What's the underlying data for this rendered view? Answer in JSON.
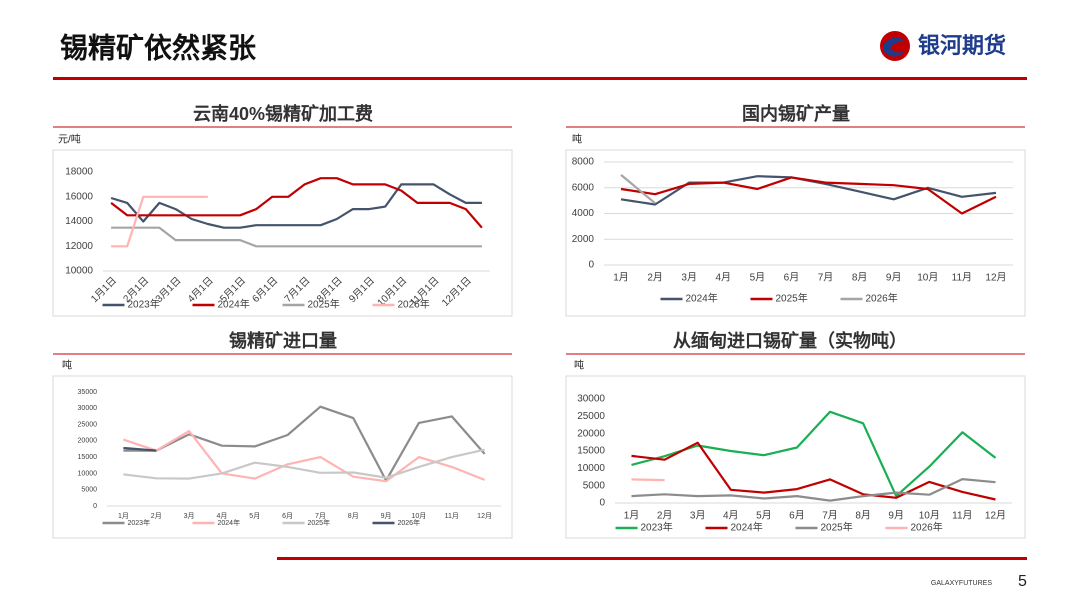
{
  "header": {
    "title": "锡精矿依然紧张",
    "logo": "银河期货"
  },
  "footer": {
    "brand": "GALAXYFUTURES",
    "page": "5"
  },
  "chart_data": [
    {
      "type": "line",
      "title": "云南40%锡精矿加工费",
      "y_label": "元/吨",
      "categories": [
        "1月1日",
        null,
        "2月1日",
        null,
        "3月1日",
        null,
        "4月1日",
        null,
        "5月1日",
        null,
        "6月1日",
        null,
        "7月1日",
        null,
        "8月1日",
        null,
        "9月1日",
        null,
        "10月1日",
        null,
        "11月1日",
        null,
        "12月1日",
        null
      ],
      "series": [
        {
          "name": "2023年",
          "color": "#44546a",
          "values": [
            15900,
            15500,
            14000,
            15500,
            15000,
            14200,
            13800,
            13500,
            13500,
            13700,
            13700,
            13700,
            13700,
            13700,
            14200,
            15000,
            15000,
            15200,
            17000,
            17000,
            17000,
            16200,
            15500,
            15500
          ]
        },
        {
          "name": "2024年",
          "color": "#c00000",
          "values": [
            15500,
            14500,
            14500,
            14500,
            14500,
            14500,
            14500,
            14500,
            14500,
            15000,
            16000,
            16000,
            17000,
            17500,
            17500,
            17000,
            17000,
            17000,
            16500,
            15500,
            15500,
            15500,
            15000,
            13500
          ]
        },
        {
          "name": "2025年",
          "color": "#a5a5a5",
          "values": [
            13500,
            13500,
            13500,
            13500,
            12500,
            12500,
            12500,
            12500,
            12500,
            12000,
            12000,
            12000,
            12000,
            12000,
            12000,
            12000,
            12000,
            12000,
            12000,
            12000,
            12000,
            12000,
            12000,
            12000
          ]
        },
        {
          "name": "2026年",
          "color": "#ffb3b3",
          "values": [
            12000,
            12000,
            16000,
            16000,
            16000,
            16000,
            16000,
            null,
            null,
            null,
            null,
            null,
            null,
            null,
            null,
            null,
            null,
            null,
            null,
            null,
            null,
            null,
            null,
            null
          ]
        }
      ],
      "ylim": [
        10000,
        18000
      ],
      "yticks": [
        10000,
        12000,
        14000,
        16000,
        18000
      ],
      "grid": false
    },
    {
      "type": "line",
      "title": "国内锡矿产量",
      "y_label": "吨",
      "categories": [
        "1月",
        "2月",
        "3月",
        "4月",
        "5月",
        "6月",
        "7月",
        "8月",
        "9月",
        "10月",
        "11月",
        "12月"
      ],
      "series": [
        {
          "name": "2024年",
          "color": "#44546a",
          "values": [
            5100,
            4700,
            6400,
            6400,
            6900,
            6800,
            6300,
            5700,
            5100,
            6000,
            5300,
            5600
          ]
        },
        {
          "name": "2025年",
          "color": "#c00000",
          "values": [
            5900,
            5500,
            6300,
            6400,
            5900,
            6800,
            6400,
            6300,
            6200,
            5900,
            4000,
            5300
          ]
        },
        {
          "name": "2026年",
          "color": "#a5a5a5",
          "values": [
            7000,
            4800,
            null,
            null,
            null,
            null,
            null,
            null,
            null,
            null,
            null,
            null
          ]
        }
      ],
      "ylim": [
        0,
        8000
      ],
      "yticks": [
        0,
        2000,
        4000,
        6000,
        8000
      ],
      "grid": true
    },
    {
      "type": "line",
      "title": "锡精矿进口量",
      "y_label": "吨",
      "categories": [
        "1月",
        "2月",
        "3月",
        "4月",
        "5月",
        "6月",
        "7月",
        "8月",
        "9月",
        "10月",
        "11月",
        "12月"
      ],
      "series": [
        {
          "name": "2023年",
          "color": "#8c8c8c",
          "values": [
            17000,
            17000,
            22000,
            18500,
            18300,
            21800,
            30500,
            27000,
            7800,
            25500,
            27500,
            16000
          ]
        },
        {
          "name": "2024年",
          "color": "#ffb3b3",
          "values": [
            20400,
            17000,
            23000,
            10000,
            8400,
            12800,
            15000,
            9000,
            7600,
            15000,
            12000,
            8000
          ]
        },
        {
          "name": "2025年",
          "color": "#c8c8c8",
          "values": [
            9700,
            8500,
            8400,
            10000,
            13300,
            12000,
            10200,
            10300,
            8700,
            12000,
            15000,
            17300
          ]
        },
        {
          "name": "2026年",
          "color": "#44546a",
          "values": [
            17800,
            17000,
            null,
            null,
            null,
            null,
            null,
            null,
            null,
            null,
            null,
            null
          ]
        }
      ],
      "ylim": [
        0,
        35000
      ],
      "yticks": [
        0,
        5000,
        10000,
        15000,
        20000,
        25000,
        30000,
        35000
      ],
      "grid": false
    },
    {
      "type": "line",
      "title": "从缅甸进口锡矿量（实物吨）",
      "y_label": "吨",
      "categories": [
        "1月",
        "2月",
        "3月",
        "4月",
        "5月",
        "6月",
        "7月",
        "8月",
        "9月",
        "10月",
        "11月",
        "12月"
      ],
      "series": [
        {
          "name": "2023年",
          "color": "#1aaf54",
          "values": [
            11000,
            13500,
            16600,
            15000,
            13800,
            16000,
            26300,
            23000,
            2000,
            10500,
            20400,
            13000
          ]
        },
        {
          "name": "2024年",
          "color": "#c00000",
          "values": [
            13600,
            12500,
            17400,
            3800,
            3000,
            4000,
            6800,
            2500,
            1500,
            6100,
            3200,
            1000
          ]
        },
        {
          "name": "2025年",
          "color": "#8c8c8c",
          "values": [
            2000,
            2500,
            2000,
            2200,
            1300,
            2000,
            700,
            2000,
            3000,
            2400,
            6900,
            6000
          ]
        },
        {
          "name": "2026年",
          "color": "#ffb3b3",
          "values": [
            6800,
            6600,
            null,
            null,
            null,
            null,
            null,
            null,
            null,
            null,
            null,
            null
          ]
        }
      ],
      "ylim": [
        0,
        30000
      ],
      "yticks": [
        0,
        5000,
        10000,
        15000,
        20000,
        25000,
        30000
      ],
      "grid": false
    }
  ]
}
